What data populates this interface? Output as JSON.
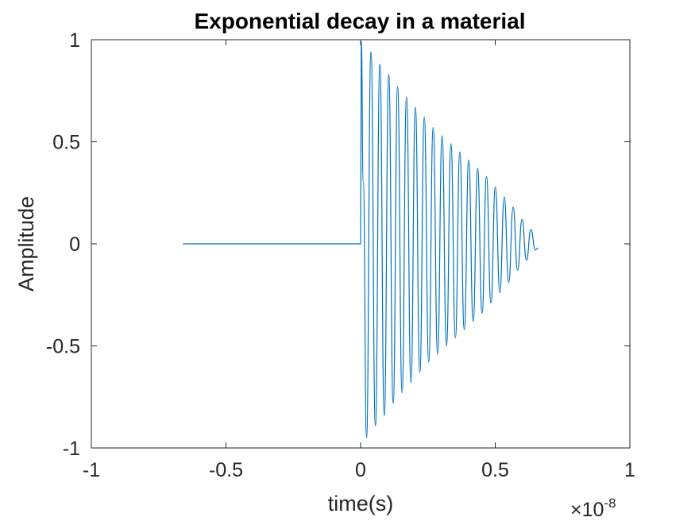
{
  "chart_data": {
    "type": "line",
    "title": "Exponential decay in a material",
    "xlabel": "time(s)",
    "ylabel": "Amplitude",
    "x_exponent_base": "×10",
    "x_exponent_power": "-8",
    "xlim": [
      -1e-08,
      1e-08
    ],
    "ylim": [
      -1,
      1
    ],
    "xticks": [
      -1e-08,
      -5e-09,
      0,
      5e-09,
      1e-08
    ],
    "xtick_labels": [
      "-1",
      "-0.5",
      "0",
      "0.5",
      "1"
    ],
    "yticks": [
      -1,
      -0.5,
      0,
      0.5,
      1
    ],
    "ytick_labels": [
      "-1",
      "-0.5",
      "0",
      "0.5",
      "1"
    ],
    "grid": false,
    "box": true,
    "series": [
      {
        "color": "#0072BD",
        "x": [
          -6.6e-09,
          0,
          2.5e-11,
          1e-10,
          2.2e-10,
          3.85e-10,
          5.5e-10,
          7.15e-10,
          8.8e-10,
          1.045e-09,
          1.21e-09,
          1.375e-09,
          1.54e-09,
          1.705e-09,
          1.87e-09,
          2.035e-09,
          2.2e-09,
          2.365e-09,
          2.53e-09,
          2.695e-09,
          2.86e-09,
          3.025e-09,
          3.19e-09,
          3.355e-09,
          3.52e-09,
          3.685e-09,
          3.85e-09,
          4.015e-09,
          4.18e-09,
          4.345e-09,
          4.51e-09,
          4.675e-09,
          4.84e-09,
          5.005e-09,
          5.17e-09,
          5.335e-09,
          5.5e-09,
          5.665e-09,
          5.83e-09,
          5.995e-09,
          6.16e-09,
          6.325e-09,
          6.49e-09,
          6.6e-09
        ],
        "y": [
          0,
          0,
          0.99,
          0.3,
          -0.95,
          0.94,
          -0.89,
          0.88,
          -0.84,
          0.83,
          -0.78,
          0.77,
          -0.73,
          0.72,
          -0.68,
          0.67,
          -0.63,
          0.62,
          -0.58,
          0.57,
          -0.54,
          0.53,
          -0.5,
          0.49,
          -0.46,
          0.45,
          -0.42,
          0.41,
          -0.38,
          0.37,
          -0.34,
          0.33,
          -0.29,
          0.28,
          -0.24,
          0.23,
          -0.19,
          0.18,
          -0.13,
          0.12,
          -0.08,
          0.07,
          -0.03,
          -0.02
        ]
      }
    ]
  }
}
